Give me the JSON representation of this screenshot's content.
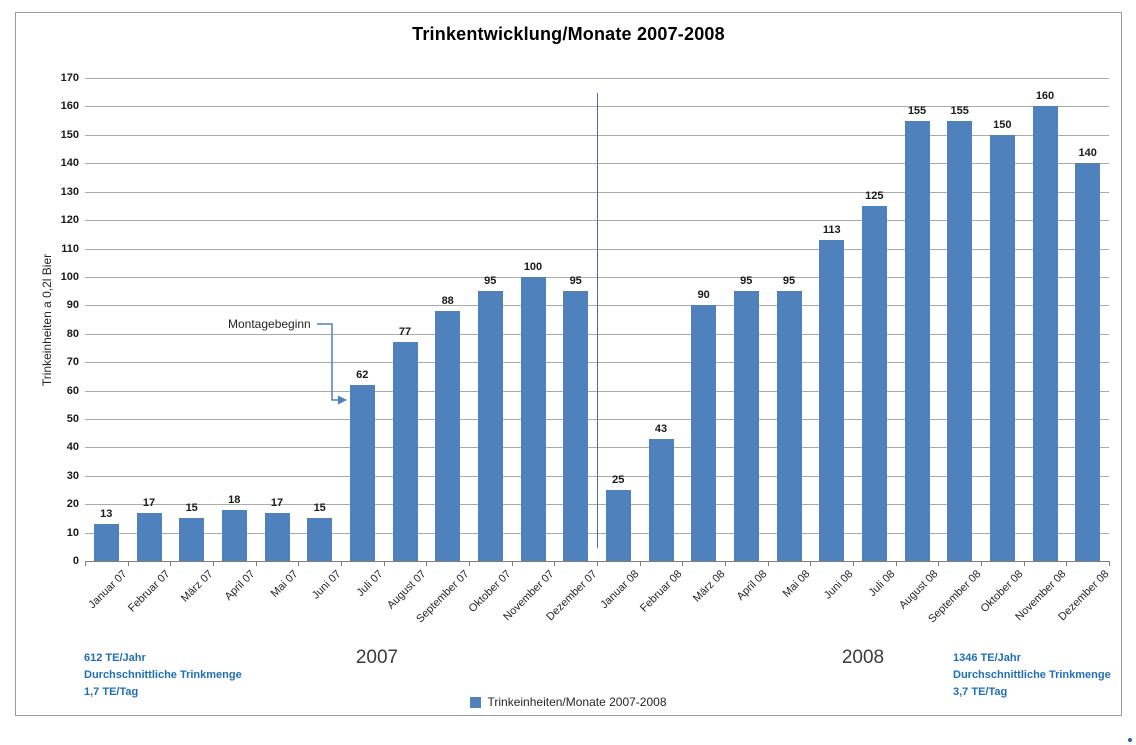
{
  "chart_data": {
    "type": "bar",
    "title": "Trinkentwicklung/Monate 2007-2008",
    "xlabel": "",
    "ylabel": "Trinkeinheiten a 0,2l Bier",
    "ylim": [
      0,
      170
    ],
    "ytick_step": 10,
    "grid": true,
    "legend_position": "bottom-center",
    "categories": [
      "Januar 07",
      "Februar 07",
      "März 07",
      "April 07",
      "Mai 07",
      "Juni 07",
      "Juli 07",
      "August 07",
      "September 07",
      "Oktober 07",
      "November 07",
      "Dezember 07",
      "Januar 08",
      "Februar 08",
      "März 08",
      "April 08",
      "Mai 08",
      "Juni 08",
      "Juli 08",
      "August 08",
      "September 08",
      "Oktober 08",
      "November 08",
      "Dezember 08"
    ],
    "series": [
      {
        "name": "Trinkeinheiten/Monate 2007-2008",
        "values": [
          13,
          17,
          15,
          18,
          17,
          15,
          62,
          77,
          88,
          95,
          100,
          95,
          25,
          43,
          90,
          95,
          95,
          113,
          125,
          155,
          155,
          150,
          160,
          140
        ]
      }
    ],
    "annotation": {
      "text": "Montagebeginn",
      "target_category": "Juli 07"
    },
    "divider_between": [
      "Dezember 07",
      "Januar 08"
    ]
  },
  "footer": {
    "year_left": "2007",
    "year_right": "2008",
    "left_stats": {
      "lines": [
        "612 TE/Jahr",
        "Durchschnittliche Trinkmenge",
        "1,7 TE/Tag"
      ]
    },
    "right_stats": {
      "lines": [
        "1346 TE/Jahr",
        "Durchschnittliche Trinkmenge",
        "3,7 TE/Tag"
      ]
    },
    "legend_label": "Trinkeinheiten/Monate 2007-2008"
  },
  "colors": {
    "bar": "#4F81BD",
    "divider_line": "#4472A8",
    "annotation_line": "#4F81BD",
    "blue_text": "#1F6FB8",
    "gridline": "#ABABAB",
    "axis": "#7F7F7F"
  }
}
